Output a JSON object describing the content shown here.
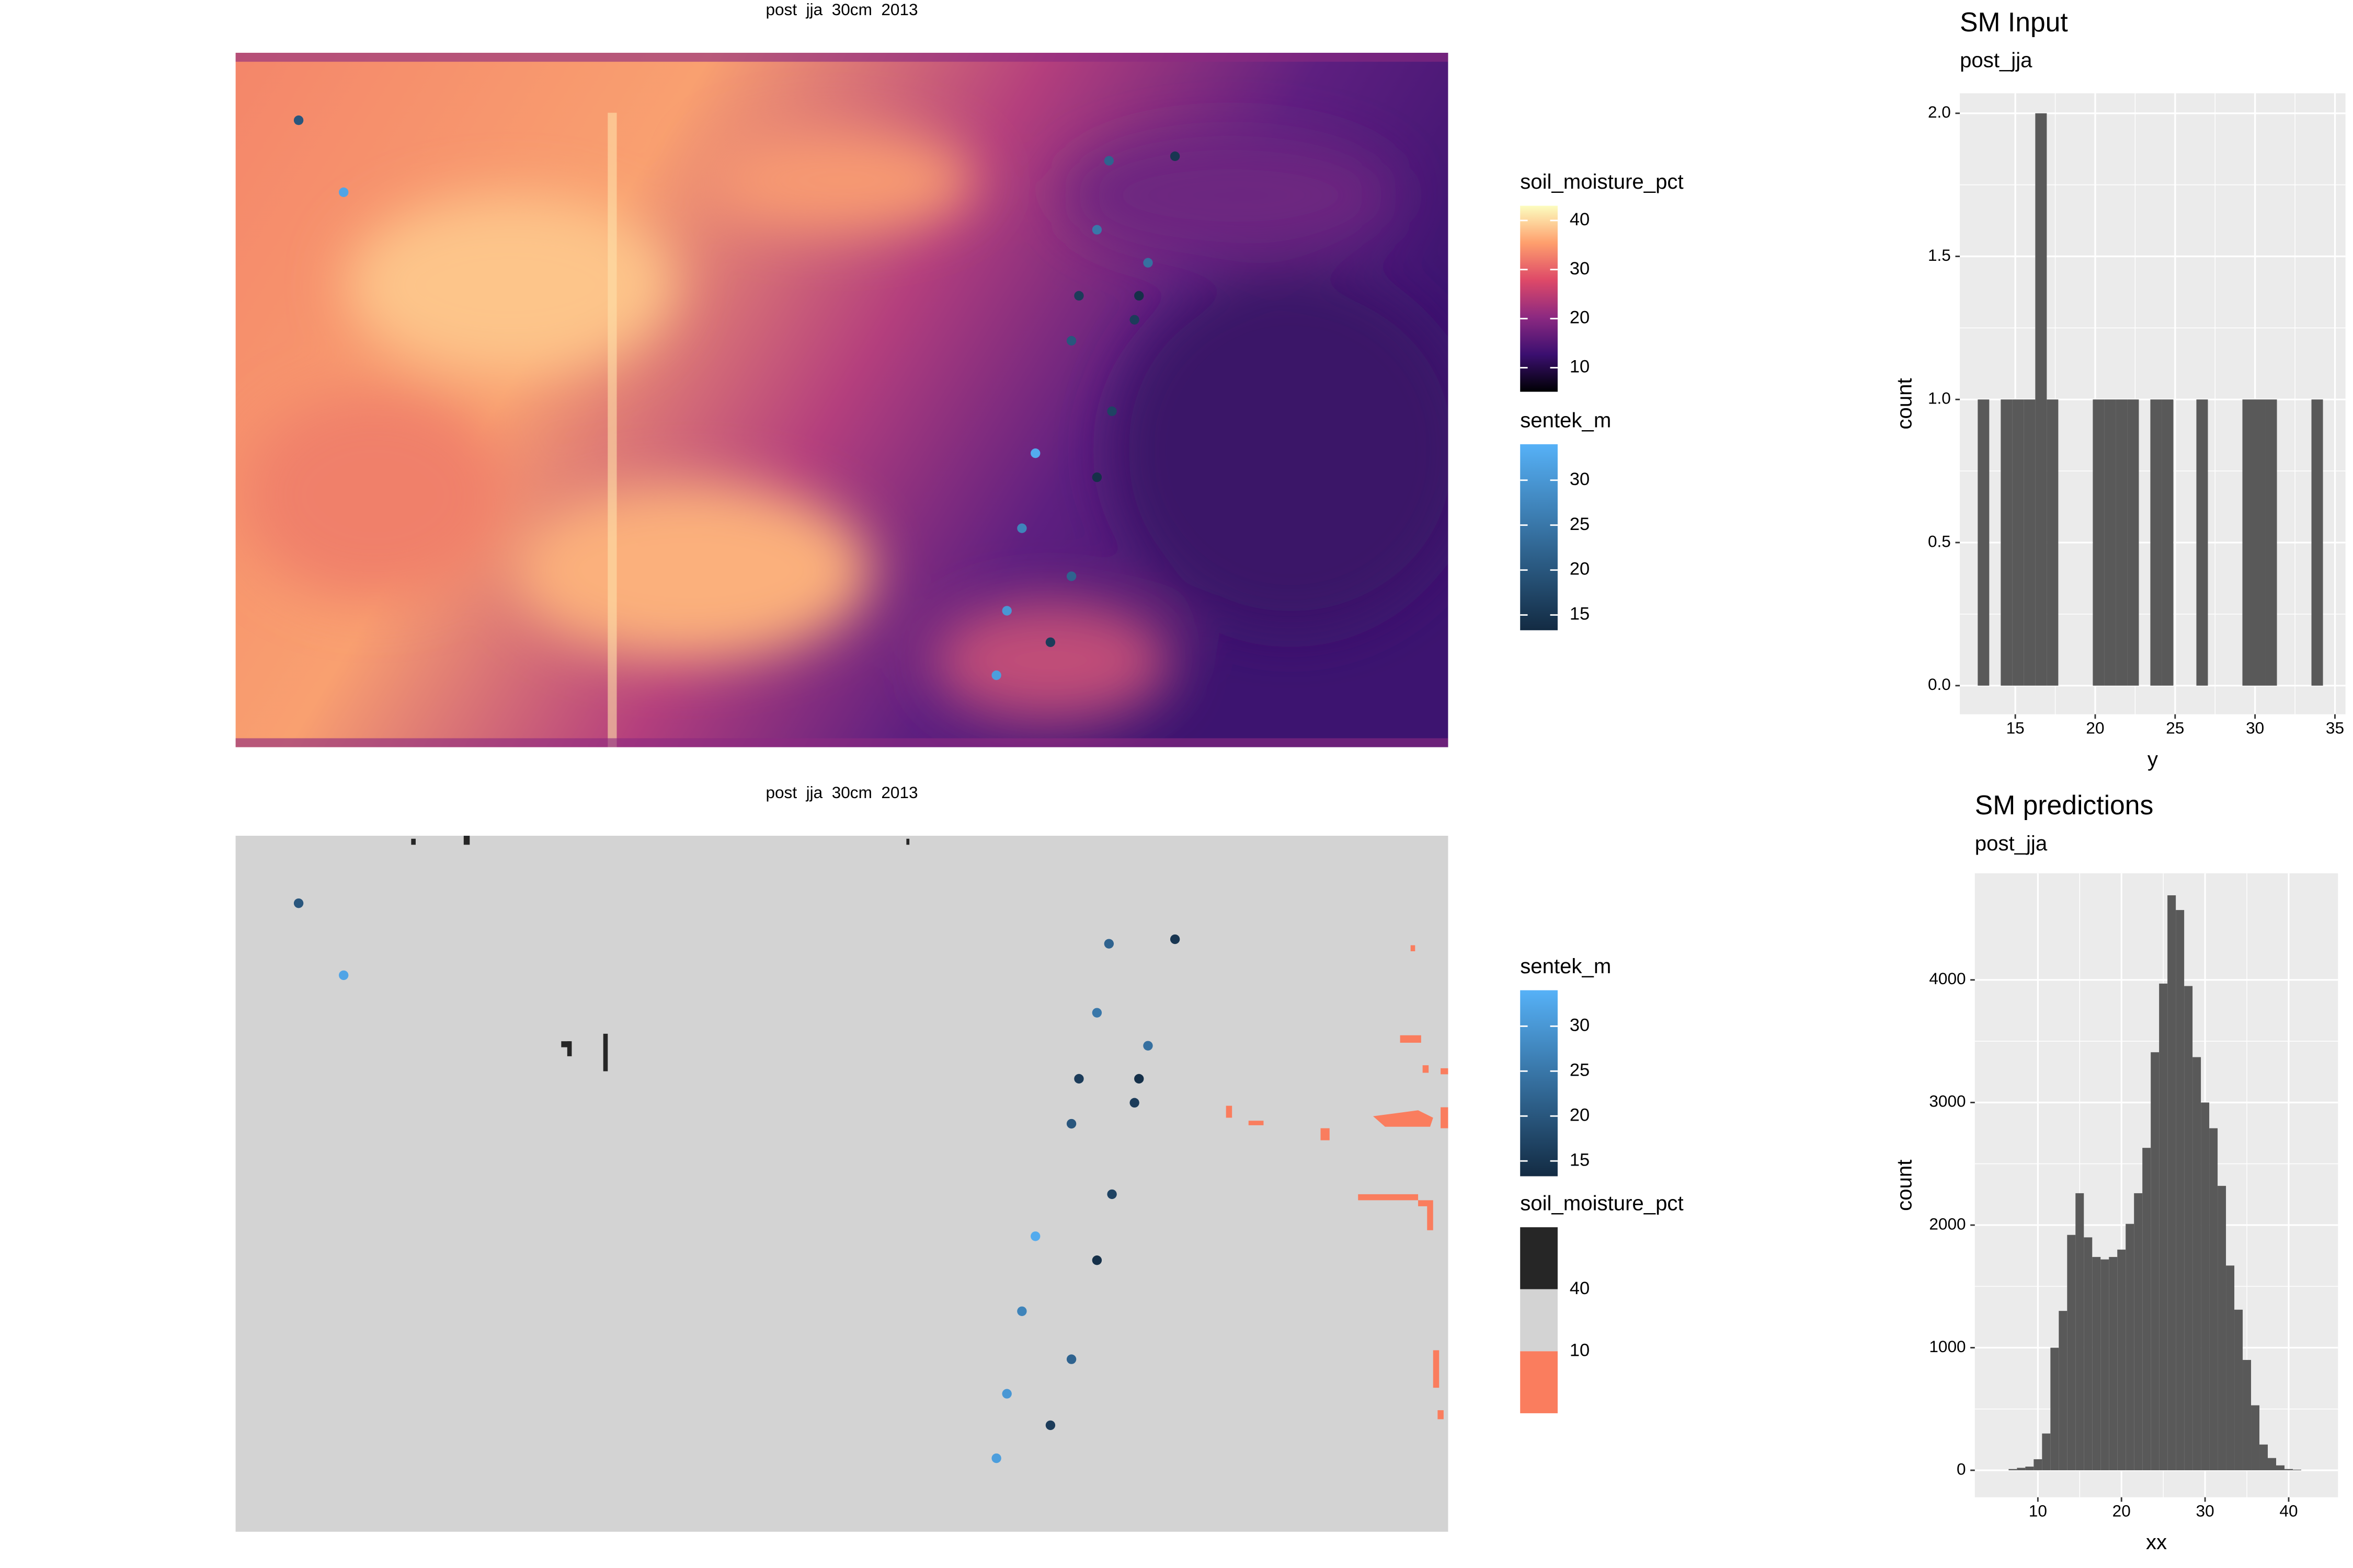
{
  "chart_data": [
    {
      "type": "map",
      "title": "post  jja  30cm  2013",
      "legends": [
        {
          "title": "soil_moisture_pct",
          "type": "gradient",
          "ticks": [
            10,
            20,
            30,
            40
          ],
          "lim": [
            5.1,
            43
          ],
          "colors": [
            "#000004",
            "#3b0f70",
            "#8c2981",
            "#de4968",
            "#fe9f6d",
            "#fcfdbf"
          ]
        },
        {
          "title": "sentek_m",
          "type": "gradient",
          "ticks": [
            15,
            20,
            25,
            30
          ],
          "lim": [
            13.3,
            34
          ],
          "colors": [
            "#132B43",
            "#56B1F7"
          ]
        }
      ],
      "points": {
        "legend": 1,
        "values": [
          20,
          32,
          22,
          15,
          25,
          24,
          16,
          14,
          16,
          20,
          17,
          33,
          14,
          27,
          22,
          30,
          16,
          31
        ]
      }
    },
    {
      "type": "map",
      "title": "post  jja  30cm  2013",
      "legends": [
        {
          "title": "sentek_m",
          "type": "gradient",
          "ticks": [
            15,
            20,
            25,
            30
          ],
          "lim": [
            13.3,
            34
          ],
          "colors": [
            "#132B43",
            "#56B1F7"
          ]
        },
        {
          "title": "soil_moisture_pct",
          "type": "binned",
          "ticks": [
            40,
            10
          ],
          "colors": [
            "#262626",
            "#d3d3d3",
            "#fa7d5e"
          ]
        }
      ],
      "points": {
        "legend": 0,
        "values": [
          20,
          32,
          22,
          15,
          25,
          24,
          16,
          14,
          16,
          20,
          17,
          33,
          14,
          27,
          22,
          30,
          16,
          31
        ]
      }
    },
    {
      "type": "histogram",
      "title": "SM Input",
      "subtitle": "post_jja",
      "x_label": "y",
      "y_label": "count",
      "color": "#595959",
      "grid": true,
      "bins": [
        12.65,
        13.37,
        14.09,
        14.81,
        15.53,
        16.25,
        16.97,
        17.69,
        18.41,
        19.13,
        19.85,
        20.57,
        21.29,
        22.01,
        22.73,
        23.45,
        24.17,
        24.89,
        25.61,
        26.33,
        27.05,
        27.77,
        28.49,
        29.21,
        29.93,
        30.65,
        31.37,
        32.09,
        32.81,
        33.53,
        34.25
      ],
      "values": [
        1,
        0,
        1,
        1,
        1,
        2,
        1,
        0,
        0,
        0,
        1,
        1,
        1,
        1,
        0,
        1,
        1,
        0,
        0,
        1,
        0,
        0,
        0,
        1,
        1,
        1,
        0,
        0,
        0,
        1
      ],
      "xlim": [
        11.53,
        35.66
      ],
      "ylim": [
        -0.1,
        2.07
      ],
      "xticks": [
        15,
        20,
        25,
        30,
        35
      ],
      "yticks": [
        {
          "value": 0,
          "label": "0.0"
        },
        0.5,
        {
          "value": 1,
          "label": "1.0"
        },
        1.5,
        {
          "value": 2,
          "label": "2.0"
        }
      ]
    },
    {
      "type": "histogram",
      "title": "SM predictions",
      "subtitle": "post_jja",
      "x_label": "xx",
      "y_label": "count",
      "color": "#595959",
      "grid": true,
      "bins": [
        5.5,
        6.5,
        7.5,
        8.5,
        9.5,
        10.5,
        11.5,
        12.5,
        13.5,
        14.5,
        15.5,
        16.5,
        17.5,
        18.5,
        19.5,
        20.5,
        21.5,
        22.5,
        23.5,
        24.5,
        25.5,
        26.5,
        27.5,
        28.5,
        29.5,
        30.5,
        31.5,
        32.5,
        33.5,
        34.5,
        35.5,
        36.5,
        37.5,
        38.5,
        39.5,
        40.5,
        41.5
      ],
      "values": [
        0,
        10,
        20,
        30,
        90,
        300,
        1000,
        1300,
        1920,
        2260,
        1900,
        1740,
        1720,
        1740,
        1800,
        2010,
        2260,
        2630,
        3410,
        3970,
        4690,
        4570,
        3950,
        3370,
        3000,
        2790,
        2320,
        1670,
        1310,
        900,
        530,
        210,
        100,
        40,
        10,
        5
      ],
      "xlim": [
        2.46,
        45.9
      ],
      "ylim": [
        -220,
        4870
      ],
      "xticks": [
        10,
        20,
        30,
        40
      ],
      "yticks": [
        0,
        1000,
        2000,
        3000,
        4000
      ]
    }
  ]
}
